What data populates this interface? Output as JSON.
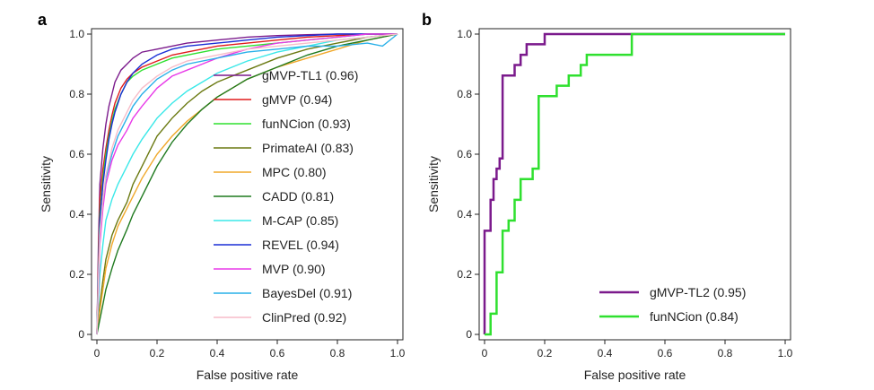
{
  "chart_data": [
    {
      "type": "line",
      "panel_label": "a",
      "xlabel": "False positive rate",
      "ylabel": "Sensitivity",
      "xlim": [
        0,
        1
      ],
      "ylim": [
        0,
        1
      ],
      "xticks": [
        "0",
        "0.2",
        "0.4",
        "0.6",
        "0.8",
        "1.0"
      ],
      "yticks": [
        "0",
        "0.2",
        "0.4",
        "0.6",
        "0.8",
        "1.0"
      ],
      "legend_position": "center-right",
      "series": [
        {
          "name": "gMVP-TL1 (0.96)",
          "color": "#7b1a8c",
          "x": [
            0,
            0.005,
            0.01,
            0.02,
            0.03,
            0.04,
            0.05,
            0.06,
            0.08,
            0.1,
            0.12,
            0.15,
            0.2,
            0.25,
            0.3,
            0.4,
            0.5,
            0.6,
            0.7,
            0.8,
            0.9,
            1.0
          ],
          "y": [
            0,
            0.3,
            0.5,
            0.62,
            0.7,
            0.76,
            0.8,
            0.84,
            0.88,
            0.9,
            0.92,
            0.94,
            0.95,
            0.96,
            0.97,
            0.98,
            0.99,
            0.995,
            0.998,
            1,
            1,
            1
          ]
        },
        {
          "name": "gMVP (0.94)",
          "color": "#e01c1c",
          "x": [
            0,
            0.005,
            0.01,
            0.02,
            0.03,
            0.04,
            0.05,
            0.06,
            0.08,
            0.1,
            0.12,
            0.15,
            0.2,
            0.25,
            0.3,
            0.4,
            0.5,
            0.6,
            0.7,
            0.8,
            0.9,
            1.0
          ],
          "y": [
            0,
            0.25,
            0.45,
            0.55,
            0.62,
            0.68,
            0.73,
            0.77,
            0.82,
            0.85,
            0.87,
            0.89,
            0.91,
            0.93,
            0.94,
            0.96,
            0.97,
            0.98,
            0.99,
            0.995,
            1,
            1
          ]
        },
        {
          "name": "funNCion (0.93)",
          "color": "#2fe02f",
          "x": [
            0,
            0.005,
            0.01,
            0.02,
            0.03,
            0.04,
            0.05,
            0.06,
            0.08,
            0.1,
            0.12,
            0.15,
            0.2,
            0.25,
            0.3,
            0.4,
            0.5,
            0.6,
            0.7,
            0.8,
            0.9,
            1.0
          ],
          "y": [
            0,
            0.2,
            0.4,
            0.52,
            0.6,
            0.66,
            0.71,
            0.75,
            0.8,
            0.84,
            0.86,
            0.88,
            0.9,
            0.92,
            0.93,
            0.95,
            0.96,
            0.97,
            0.98,
            0.99,
            1,
            1
          ]
        },
        {
          "name": "PrimateAI (0.83)",
          "color": "#6b7a12",
          "x": [
            0,
            0.01,
            0.02,
            0.03,
            0.05,
            0.07,
            0.1,
            0.12,
            0.15,
            0.18,
            0.2,
            0.25,
            0.3,
            0.35,
            0.4,
            0.5,
            0.6,
            0.7,
            0.8,
            0.9,
            1.0
          ],
          "y": [
            0,
            0.1,
            0.18,
            0.25,
            0.33,
            0.38,
            0.44,
            0.5,
            0.56,
            0.62,
            0.66,
            0.72,
            0.77,
            0.81,
            0.84,
            0.88,
            0.92,
            0.95,
            0.97,
            0.99,
            1
          ]
        },
        {
          "name": "MPC (0.80)",
          "color": "#f0a82a",
          "x": [
            0,
            0.01,
            0.02,
            0.03,
            0.05,
            0.07,
            0.1,
            0.12,
            0.15,
            0.2,
            0.25,
            0.3,
            0.35,
            0.4,
            0.45,
            0.5,
            0.6,
            0.7,
            0.8,
            0.9,
            1.0
          ],
          "y": [
            0,
            0.08,
            0.15,
            0.22,
            0.3,
            0.36,
            0.42,
            0.46,
            0.52,
            0.6,
            0.66,
            0.71,
            0.75,
            0.79,
            0.82,
            0.85,
            0.89,
            0.92,
            0.95,
            0.98,
            1
          ]
        },
        {
          "name": "CADD (0.81)",
          "color": "#1f7a1f",
          "x": [
            0,
            0.01,
            0.02,
            0.03,
            0.05,
            0.07,
            0.1,
            0.12,
            0.15,
            0.2,
            0.25,
            0.3,
            0.35,
            0.4,
            0.45,
            0.5,
            0.6,
            0.7,
            0.8,
            0.9,
            1.0
          ],
          "y": [
            0,
            0.05,
            0.1,
            0.15,
            0.22,
            0.28,
            0.35,
            0.4,
            0.46,
            0.56,
            0.64,
            0.7,
            0.75,
            0.79,
            0.82,
            0.85,
            0.89,
            0.93,
            0.96,
            0.98,
            1
          ]
        },
        {
          "name": "M-CAP (0.85)",
          "color": "#3ae8e8",
          "x": [
            0,
            0.01,
            0.02,
            0.03,
            0.05,
            0.07,
            0.1,
            0.12,
            0.15,
            0.2,
            0.25,
            0.3,
            0.35,
            0.4,
            0.5,
            0.6,
            0.7,
            0.8,
            0.9,
            1.0
          ],
          "y": [
            0,
            0.2,
            0.3,
            0.38,
            0.45,
            0.5,
            0.56,
            0.6,
            0.65,
            0.72,
            0.77,
            0.81,
            0.84,
            0.87,
            0.91,
            0.94,
            0.96,
            0.98,
            0.99,
            1
          ]
        },
        {
          "name": "REVEL (0.94)",
          "color": "#1a2fd6",
          "x": [
            0,
            0.005,
            0.01,
            0.02,
            0.03,
            0.04,
            0.05,
            0.06,
            0.08,
            0.1,
            0.12,
            0.15,
            0.2,
            0.25,
            0.3,
            0.4,
            0.5,
            0.6,
            0.7,
            0.8,
            0.9,
            1.0
          ],
          "y": [
            0,
            0.2,
            0.38,
            0.5,
            0.58,
            0.65,
            0.7,
            0.74,
            0.8,
            0.84,
            0.87,
            0.9,
            0.93,
            0.95,
            0.96,
            0.97,
            0.98,
            0.99,
            0.995,
            1,
            1,
            1
          ]
        },
        {
          "name": "MVP (0.90)",
          "color": "#e83ae8",
          "x": [
            0,
            0.005,
            0.01,
            0.02,
            0.03,
            0.05,
            0.07,
            0.1,
            0.12,
            0.15,
            0.2,
            0.25,
            0.3,
            0.35,
            0.4,
            0.5,
            0.6,
            0.7,
            0.8,
            0.9,
            1.0
          ],
          "y": [
            0,
            0.15,
            0.3,
            0.42,
            0.5,
            0.58,
            0.63,
            0.68,
            0.72,
            0.76,
            0.82,
            0.86,
            0.88,
            0.9,
            0.92,
            0.95,
            0.97,
            0.98,
            0.99,
            1,
            1
          ]
        },
        {
          "name": "BayesDel (0.91)",
          "color": "#29b0e8",
          "x": [
            0,
            0.005,
            0.01,
            0.02,
            0.03,
            0.05,
            0.07,
            0.1,
            0.12,
            0.15,
            0.2,
            0.25,
            0.3,
            0.4,
            0.5,
            0.6,
            0.7,
            0.8,
            0.9,
            0.95,
            1.0
          ],
          "y": [
            0,
            0.2,
            0.35,
            0.45,
            0.52,
            0.6,
            0.66,
            0.72,
            0.76,
            0.8,
            0.85,
            0.88,
            0.9,
            0.92,
            0.94,
            0.95,
            0.96,
            0.96,
            0.97,
            0.96,
            1
          ]
        },
        {
          "name": "ClinPred (0.92)",
          "color": "#f7bcc8",
          "x": [
            0,
            0.005,
            0.01,
            0.02,
            0.03,
            0.05,
            0.07,
            0.1,
            0.12,
            0.15,
            0.2,
            0.25,
            0.3,
            0.4,
            0.5,
            0.6,
            0.7,
            0.8,
            0.9,
            1.0
          ],
          "y": [
            0,
            0.18,
            0.33,
            0.45,
            0.53,
            0.62,
            0.68,
            0.74,
            0.78,
            0.82,
            0.86,
            0.89,
            0.91,
            0.93,
            0.95,
            0.96,
            0.97,
            0.98,
            0.99,
            1
          ]
        }
      ]
    },
    {
      "type": "line",
      "panel_label": "b",
      "xlabel": "False positive rate",
      "ylabel": "Sensitivity",
      "xlim": [
        0,
        1
      ],
      "ylim": [
        0,
        1
      ],
      "xticks": [
        "0",
        "0.2",
        "0.4",
        "0.6",
        "0.8",
        "1.0"
      ],
      "yticks": [
        "0",
        "0.2",
        "0.4",
        "0.6",
        "0.8",
        "1.0"
      ],
      "legend_position": "lower-right",
      "series": [
        {
          "name": "gMVP-TL2 (0.95)",
          "color": "#7b1a8c",
          "step": true,
          "x": [
            0,
            0,
            0.02,
            0.02,
            0.03,
            0.03,
            0.04,
            0.04,
            0.05,
            0.05,
            0.06,
            0.06,
            0.08,
            0.08,
            0.1,
            0.1,
            0.12,
            0.12,
            0.14,
            0.14,
            0.16,
            0.16,
            0.18,
            0.18,
            0.2,
            0.2,
            1.0
          ],
          "y": [
            0,
            0.345,
            0.345,
            0.448,
            0.448,
            0.517,
            0.517,
            0.552,
            0.552,
            0.586,
            0.586,
            0.862,
            0.862,
            0.862,
            0.862,
            0.897,
            0.897,
            0.931,
            0.931,
            0.966,
            0.966,
            0.966,
            0.966,
            0.966,
            0.966,
            1.0,
            1.0
          ]
        },
        {
          "name": "funNCion (0.84)",
          "color": "#2fe02f",
          "step": true,
          "x": [
            0,
            0.02,
            0.02,
            0.04,
            0.04,
            0.05,
            0.05,
            0.06,
            0.06,
            0.07,
            0.07,
            0.08,
            0.08,
            0.09,
            0.09,
            0.1,
            0.1,
            0.11,
            0.11,
            0.12,
            0.12,
            0.14,
            0.14,
            0.16,
            0.16,
            0.18,
            0.18,
            0.22,
            0.22,
            0.24,
            0.24,
            0.28,
            0.28,
            0.3,
            0.3,
            0.32,
            0.32,
            0.34,
            0.34,
            0.36,
            0.36,
            0.49,
            0.49,
            1.0
          ],
          "y": [
            0,
            0,
            0.069,
            0.069,
            0.207,
            0.207,
            0.207,
            0.207,
            0.345,
            0.345,
            0.345,
            0.345,
            0.379,
            0.379,
            0.379,
            0.379,
            0.448,
            0.448,
            0.448,
            0.448,
            0.517,
            0.517,
            0.517,
            0.517,
            0.552,
            0.552,
            0.793,
            0.793,
            0.793,
            0.793,
            0.828,
            0.828,
            0.862,
            0.862,
            0.862,
            0.862,
            0.897,
            0.897,
            0.931,
            0.931,
            0.931,
            0.931,
            1.0,
            1.0
          ]
        }
      ]
    }
  ]
}
